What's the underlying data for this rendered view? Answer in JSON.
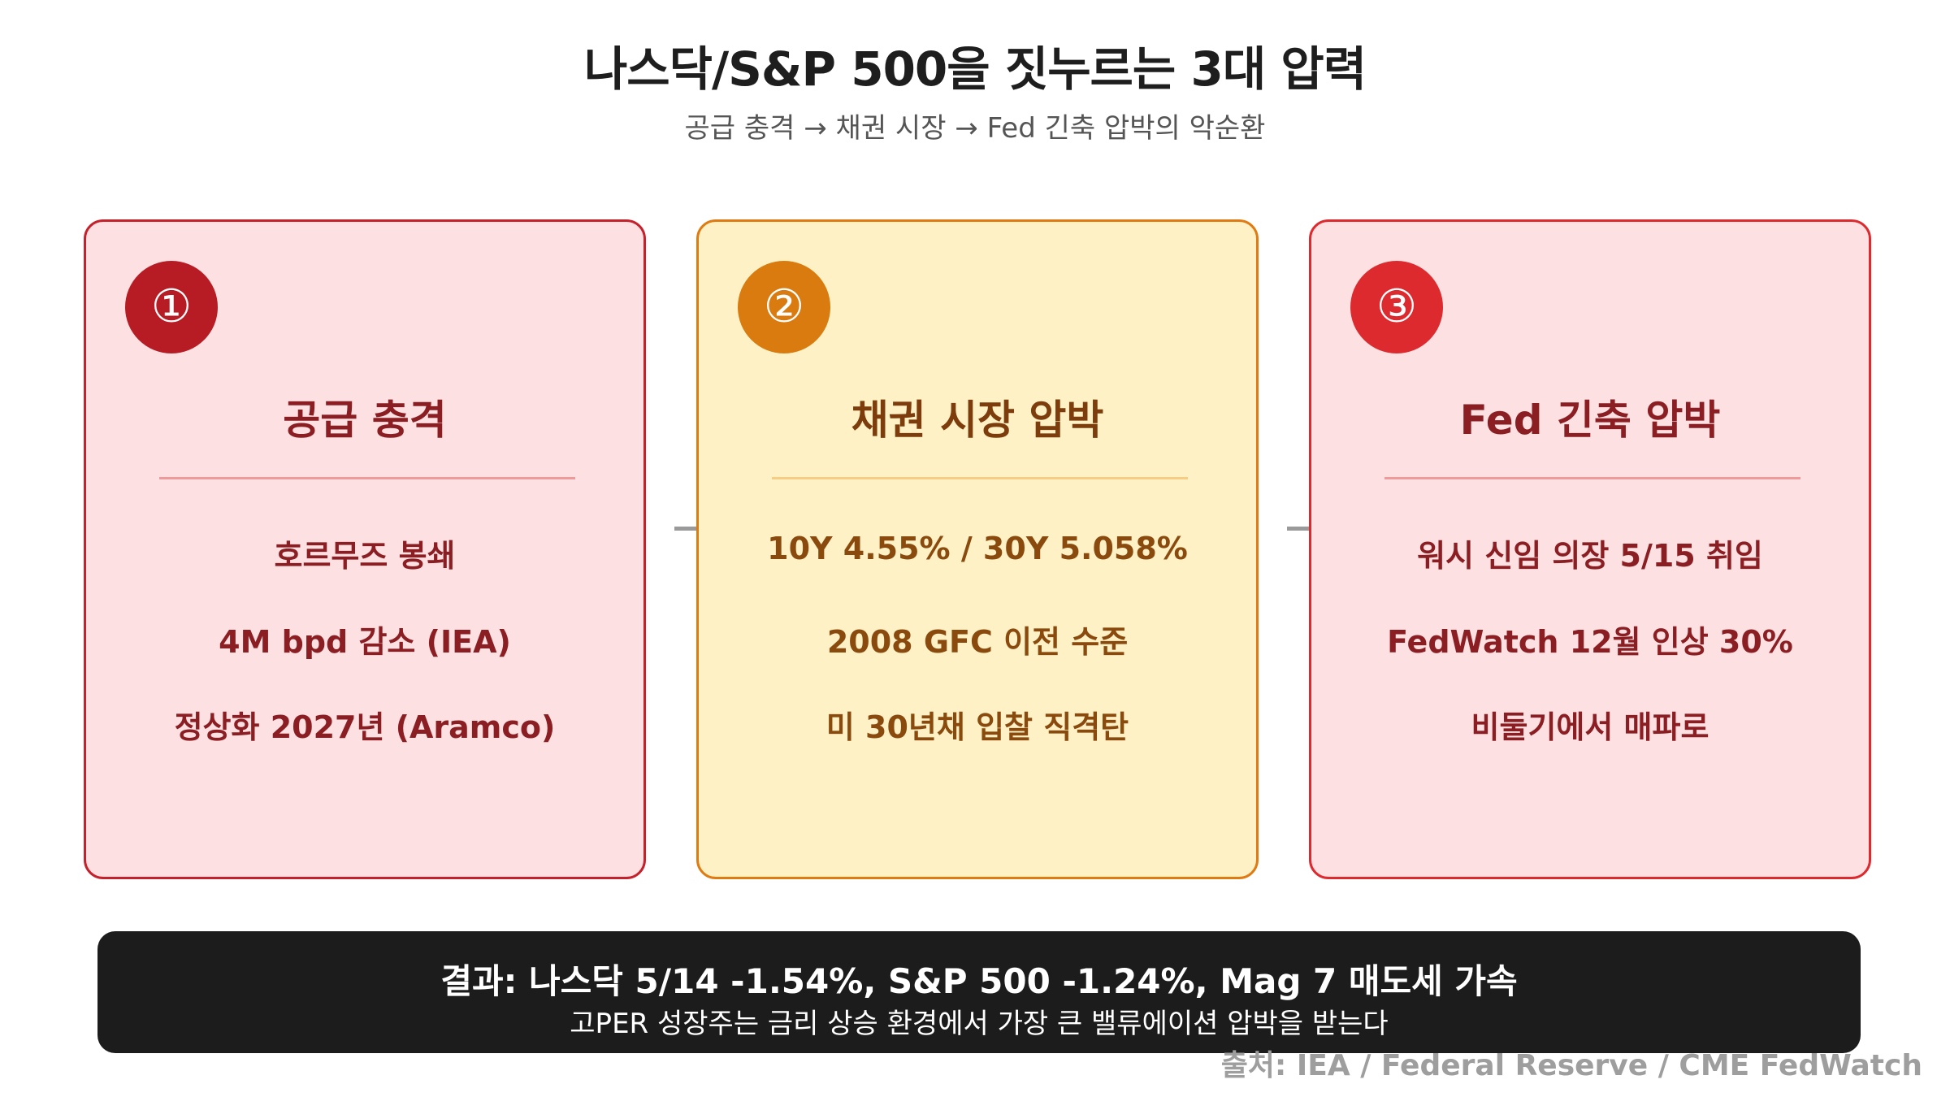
{
  "header": {
    "title": "나스닥/S&P 500을 짓누르는 3대 압력",
    "subtitle": "공급 충격 → 채권 시장 → Fed 긴축 압박의 악순환"
  },
  "cards": [
    {
      "number": "①",
      "title": "공급 충격",
      "items": [
        "호르무즈 봉쇄",
        "4M bpd 감소 (IEA)",
        "정상화 2027년 (Aramco)"
      ]
    },
    {
      "number": "②",
      "title": "채권 시장 압박",
      "items": [
        "10Y 4.55% / 30Y 5.058%",
        "2008 GFC 이전 수준",
        "미 30년채 입찰 직격탄"
      ]
    },
    {
      "number": "③",
      "title": "Fed 긴축 압박",
      "items": [
        "워시 신임 의장 5/15 취임",
        "FedWatch 12월 인상 30%",
        "비둘기에서 매파로"
      ]
    }
  ],
  "result": {
    "headline": "결과: 나스닥 5/14 -1.54%, S&P 500 -1.24%, Mag 7 매도세 가속",
    "detail": "고PER 성장주는 금리 상승 환경에서 가장 큰 밸류에이션 압박을 받는다"
  },
  "source": "출처: IEA / Federal Reserve / CME FedWatch",
  "colors": {
    "card1_border": "#c4212c",
    "card2_border": "#df7b12",
    "card3_border": "#de2a2f",
    "card1_bg": "#fde0e2",
    "card2_bg": "#fef1c5",
    "card3_bg": "#fde0e2",
    "result_bg": "#1c1c1c"
  }
}
